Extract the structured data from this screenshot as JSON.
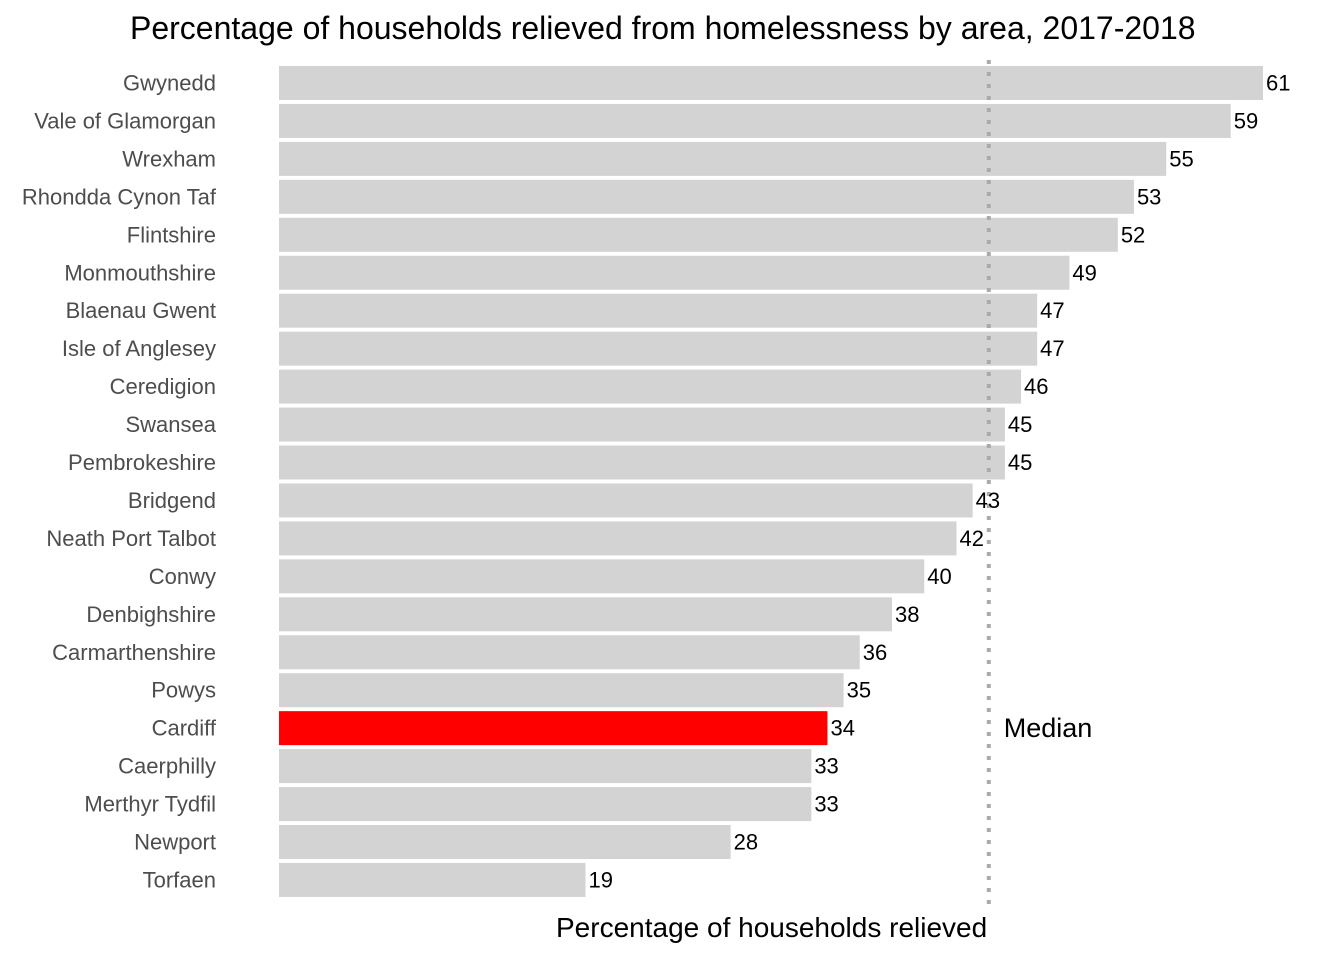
{
  "chart_data": {
    "type": "bar",
    "orientation": "horizontal",
    "title": "Percentage of households relieved from homelessness by area, 2017-2018",
    "xlabel": "Percentage of households relieved",
    "ylabel": "",
    "xlim": [
      0,
      61
    ],
    "grid": false,
    "categories": [
      "Gwynedd",
      "Vale of Glamorgan",
      "Wrexham",
      "Rhondda Cynon Taf",
      "Flintshire",
      "Monmouthshire",
      "Blaenau Gwent",
      "Isle of Anglesey",
      "Ceredigion",
      "Swansea",
      "Pembrokeshire",
      "Bridgend",
      "Neath Port Talbot",
      "Conwy",
      "Denbighshire",
      "Carmarthenshire",
      "Powys",
      "Cardiff",
      "Caerphilly",
      "Merthyr Tydfil",
      "Newport",
      "Torfaen"
    ],
    "values": [
      61,
      59,
      55,
      53,
      52,
      49,
      47,
      47,
      46,
      45,
      45,
      43,
      42,
      40,
      38,
      36,
      35,
      34,
      33,
      33,
      28,
      19
    ],
    "highlight": "Cardiff",
    "colors": {
      "bar": "#d3d3d3",
      "highlight": "#ff0000",
      "median_line": "#aaaaaa",
      "label_text": "#4d4d4d"
    },
    "median": {
      "label": "Median",
      "value": 44
    }
  }
}
